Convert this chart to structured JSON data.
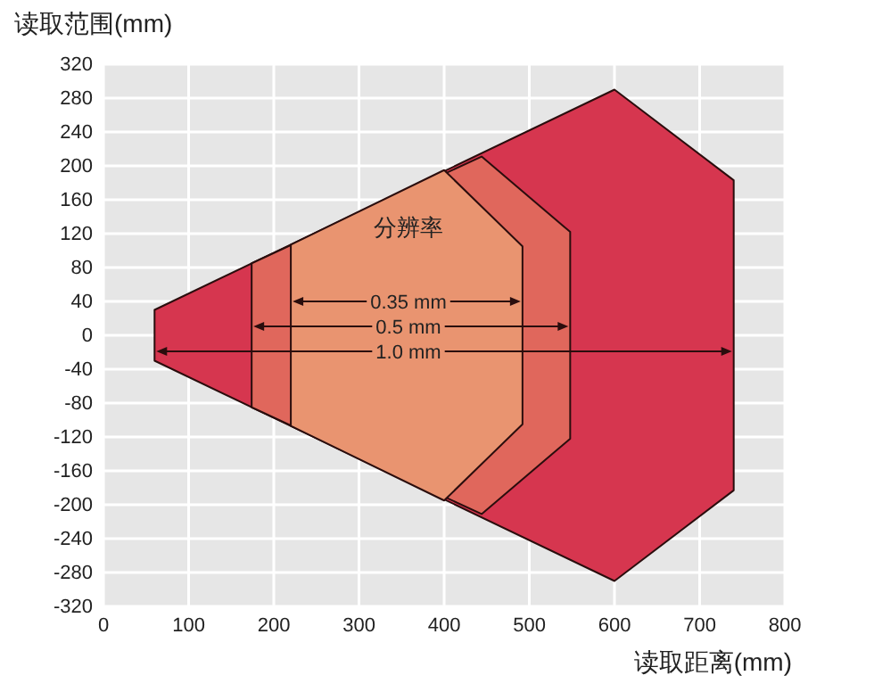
{
  "chart_data": {
    "type": "area",
    "ylabel": "读取范围(mm)",
    "xlabel": "读取距离(mm)",
    "legend_title": "分辨率",
    "xlim": [
      0,
      800
    ],
    "xticks": [
      0,
      100,
      200,
      300,
      400,
      500,
      600,
      700,
      800
    ],
    "ylim": [
      -320,
      320
    ],
    "yticks": [
      -320,
      -280,
      -240,
      -200,
      -160,
      -120,
      -80,
      -40,
      0,
      40,
      80,
      120,
      160,
      200,
      240,
      280,
      320
    ],
    "grid": true,
    "series": [
      {
        "name": "1.0 mm",
        "color": "#d6364f",
        "x": [
          60,
          600,
          740
        ],
        "values": [
          30,
          290,
          183
        ]
      },
      {
        "color": "#d6364f",
        "x": [
          60,
          600,
          740
        ],
        "values": [
          -30,
          -290,
          -183
        ]
      },
      {
        "name": "0.5 mm",
        "color": "#e0675c",
        "x": [
          174,
          444,
          548
        ],
        "values": [
          85,
          211,
          122
        ]
      },
      {
        "color": "#e0675c",
        "x": [
          174,
          444,
          548
        ],
        "values": [
          -85,
          -211,
          -122
        ]
      },
      {
        "name": "0.35 mm",
        "color": "#e99470",
        "x": [
          220,
          400,
          492
        ],
        "values": [
          107,
          195,
          105
        ]
      },
      {
        "color": "#e99470",
        "x": [
          220,
          400,
          492
        ],
        "values": [
          -107,
          -195,
          -105
        ]
      }
    ]
  }
}
